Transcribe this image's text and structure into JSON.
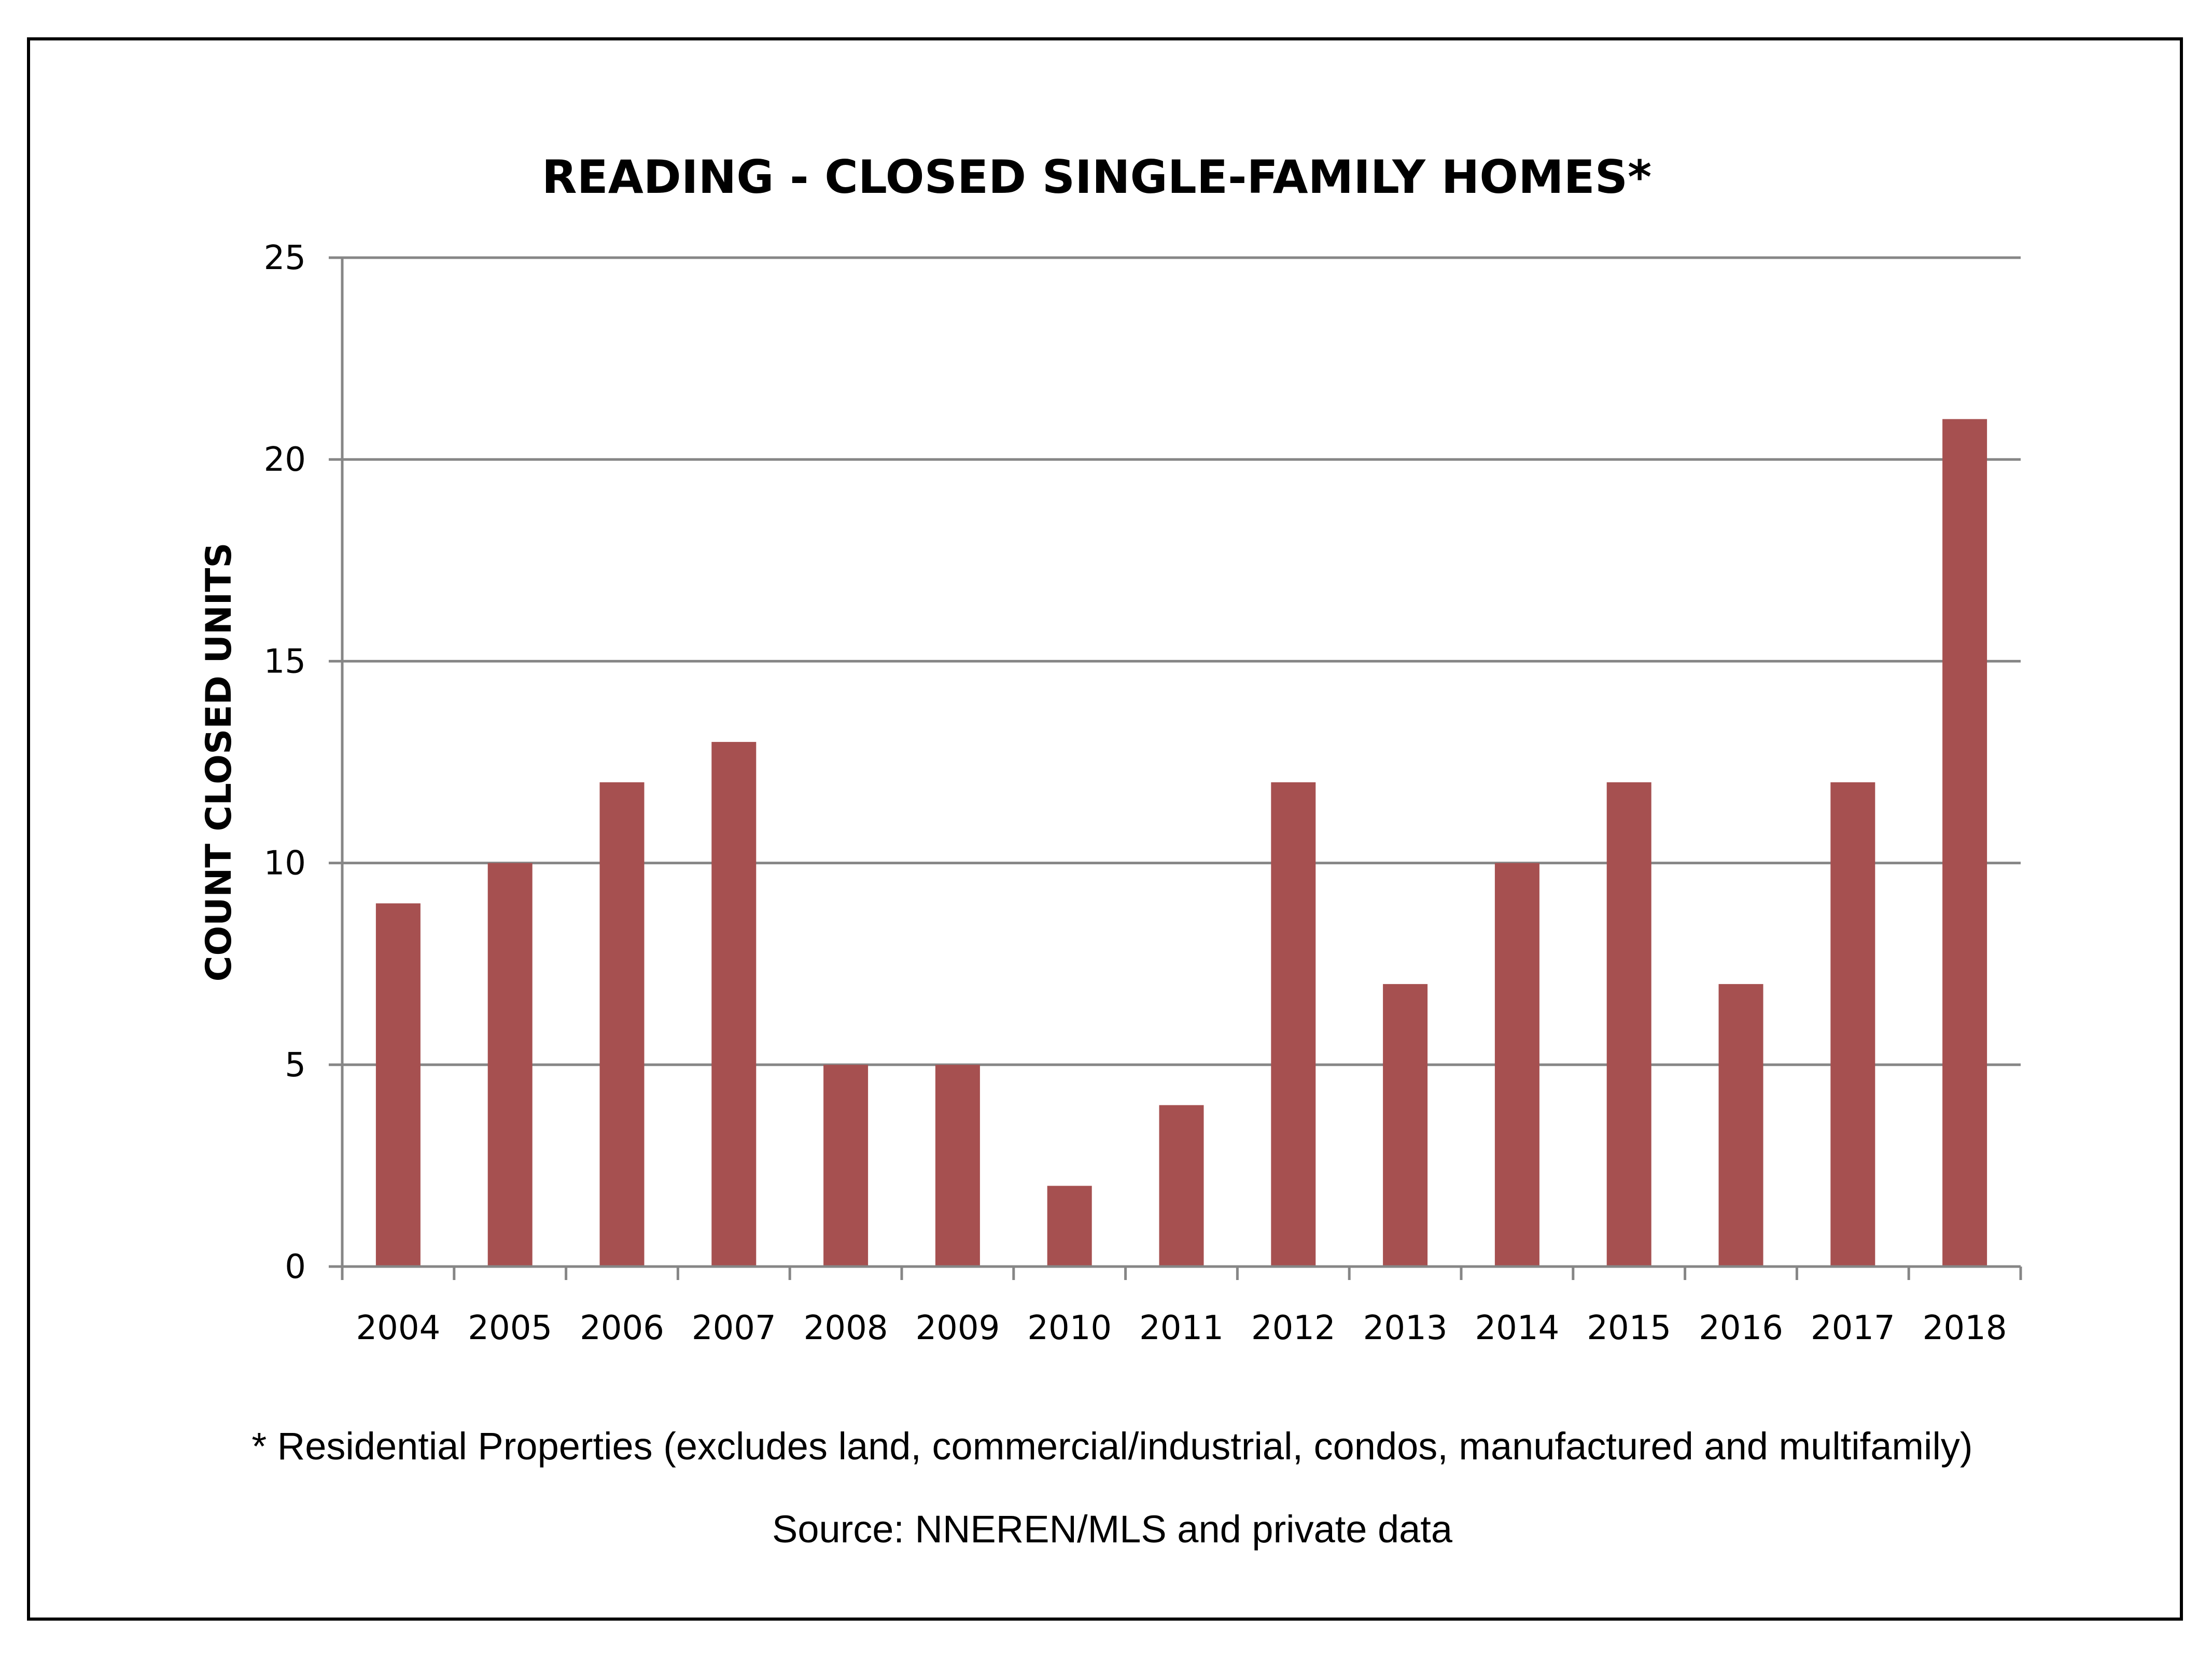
{
  "chart_data": {
    "type": "bar",
    "title": "READING - CLOSED SINGLE-FAMILY HOMES*",
    "xlabel": "",
    "ylabel": "COUNT CLOSED UNITS",
    "categories": [
      "2004",
      "2005",
      "2006",
      "2007",
      "2008",
      "2009",
      "2010",
      "2011",
      "2012",
      "2013",
      "2014",
      "2015",
      "2016",
      "2017",
      "2018"
    ],
    "values": [
      9,
      10,
      12,
      13,
      5,
      5,
      2,
      4,
      12,
      7,
      10,
      12,
      7,
      12,
      21
    ],
    "ylim": [
      0,
      25
    ],
    "yticks": [
      "0",
      "5",
      "10",
      "15",
      "20",
      "25"
    ],
    "grid": true,
    "bar_color": "#A65050",
    "legend": "none"
  },
  "footnote": "* Residential Properties (excludes land, commercial/industrial, condos, manufactured and multifamily)",
  "source": "Source: NNEREN/MLS and private data"
}
